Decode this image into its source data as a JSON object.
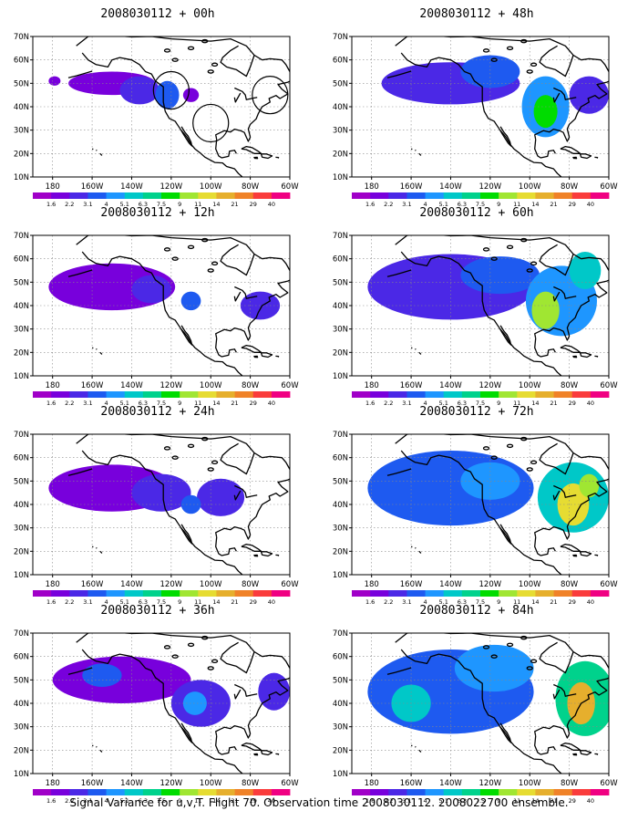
{
  "caption": "Signal Variance for u,v,T. Flight 70. Observation time 2008030112. 2008022700 ensemble.",
  "lat_labels": [
    "70N",
    "60N",
    "50N",
    "40N",
    "30N",
    "20N",
    "10N"
  ],
  "lon_labels": [
    "180",
    "160W",
    "140W",
    "120W",
    "100W",
    "80W",
    "60W"
  ],
  "colorbar": {
    "labels": [
      "1.6",
      "2.2",
      "3.1",
      "4",
      "5.1",
      "6.3",
      "7.5",
      "9",
      "11",
      "14",
      "21",
      "29",
      "40"
    ],
    "colors": [
      "#a000c8",
      "#7800dc",
      "#4b28e6",
      "#1e5af0",
      "#1e96ff",
      "#00c8c8",
      "#00d28c",
      "#00dc00",
      "#a0e632",
      "#e6dc32",
      "#e6af2d",
      "#f08228",
      "#fa3c3c",
      "#f00082"
    ]
  },
  "land_color": "#000000",
  "panels": [
    {
      "title": "2008030112 + 00h",
      "blobs": [
        [
          -150,
          50,
          22,
          5,
          1
        ],
        [
          -136,
          47,
          10,
          6,
          2
        ],
        [
          -122,
          45,
          6,
          6,
          3
        ],
        [
          -110,
          45,
          4,
          3,
          1
        ],
        [
          -179,
          51,
          3,
          2,
          1
        ]
      ],
      "circles": [
        [
          -120,
          47,
          9,
          8
        ],
        [
          -100,
          33,
          9,
          8
        ],
        [
          -70,
          45,
          9,
          8
        ]
      ]
    },
    {
      "title": "2008030112 + 48h",
      "blobs": [
        [
          -140,
          50,
          35,
          9,
          2
        ],
        [
          -120,
          55,
          15,
          7,
          3
        ],
        [
          -92,
          40,
          12,
          13,
          4
        ],
        [
          -92,
          38,
          6,
          7,
          7
        ],
        [
          -70,
          45,
          10,
          8,
          2
        ]
      ]
    },
    {
      "title": "2008030112 + 12h",
      "blobs": [
        [
          -150,
          48,
          32,
          10,
          1
        ],
        [
          -130,
          47,
          10,
          6,
          2
        ],
        [
          -110,
          42,
          5,
          4,
          3
        ],
        [
          -75,
          40,
          10,
          6,
          2
        ]
      ]
    },
    {
      "title": "2008030112 + 60h",
      "blobs": [
        [
          -140,
          48,
          42,
          14,
          2
        ],
        [
          -115,
          53,
          20,
          8,
          3
        ],
        [
          -84,
          42,
          18,
          15,
          4
        ],
        [
          -92,
          38,
          7,
          8,
          8
        ],
        [
          -72,
          55,
          8,
          8,
          5
        ]
      ]
    },
    {
      "title": "2008030112 + 24h",
      "blobs": [
        [
          -150,
          47,
          32,
          10,
          1
        ],
        [
          -125,
          45,
          15,
          8,
          2
        ],
        [
          -95,
          43,
          12,
          8,
          2
        ],
        [
          -110,
          40,
          5,
          4,
          3
        ]
      ]
    },
    {
      "title": "2008030112 + 72h",
      "blobs": [
        [
          -140,
          47,
          42,
          16,
          3
        ],
        [
          -120,
          50,
          15,
          8,
          4
        ],
        [
          -78,
          43,
          18,
          15,
          5
        ],
        [
          -78,
          40,
          8,
          9,
          9
        ],
        [
          -70,
          48,
          5,
          5,
          8
        ]
      ]
    },
    {
      "title": "2008030112 + 36h",
      "blobs": [
        [
          -145,
          50,
          35,
          10,
          1
        ],
        [
          -155,
          52,
          10,
          5,
          3
        ],
        [
          -105,
          40,
          15,
          10,
          2
        ],
        [
          -108,
          40,
          6,
          5,
          4
        ],
        [
          -68,
          45,
          8,
          8,
          2
        ]
      ]
    },
    {
      "title": "2008030112 + 84h",
      "blobs": [
        [
          -140,
          45,
          42,
          18,
          3
        ],
        [
          -118,
          55,
          20,
          10,
          4
        ],
        [
          -72,
          42,
          15,
          16,
          6
        ],
        [
          -74,
          40,
          7,
          9,
          10
        ],
        [
          -160,
          40,
          10,
          8,
          5
        ]
      ]
    }
  ]
}
